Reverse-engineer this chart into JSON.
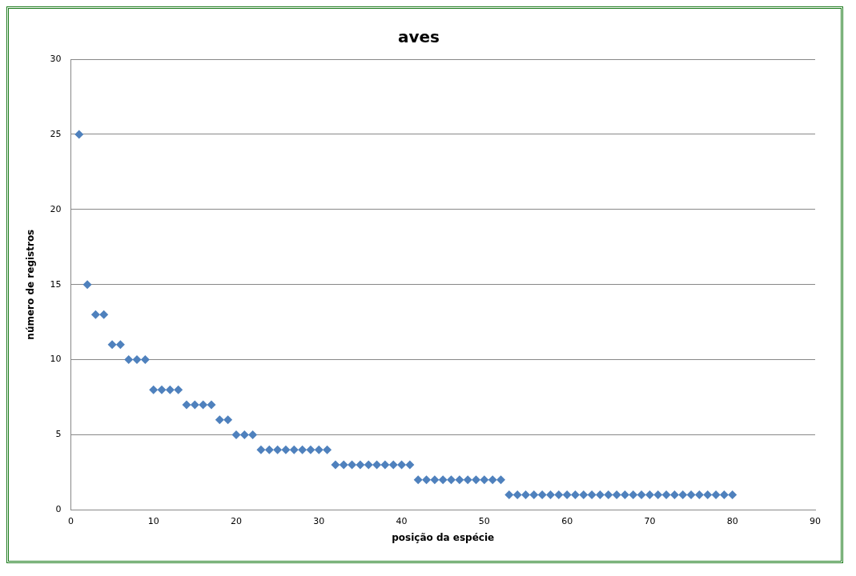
{
  "chart_data": {
    "type": "scatter",
    "title": "aves",
    "xlabel": "posição da espécie",
    "ylabel": "número de registros",
    "x": [
      1,
      2,
      3,
      4,
      5,
      6,
      7,
      8,
      9,
      10,
      11,
      12,
      13,
      14,
      15,
      16,
      17,
      18,
      19,
      20,
      21,
      22,
      23,
      24,
      25,
      26,
      27,
      28,
      29,
      30,
      31,
      32,
      33,
      34,
      35,
      36,
      37,
      38,
      39,
      40,
      41,
      42,
      43,
      44,
      45,
      46,
      47,
      48,
      49,
      50,
      51,
      52,
      53,
      54,
      55,
      56,
      57,
      58,
      59,
      60,
      61,
      62,
      63,
      64,
      65,
      66,
      67,
      68,
      69,
      70,
      71,
      72,
      73,
      74,
      75,
      76,
      77,
      78,
      79,
      80
    ],
    "series": [
      {
        "color": "#4f81bd",
        "values": [
          25,
          15,
          13,
          13,
          11,
          11,
          10,
          10,
          10,
          8,
          8,
          8,
          8,
          7,
          7,
          7,
          7,
          6,
          6,
          5,
          5,
          5,
          4,
          4,
          4,
          4,
          4,
          4,
          4,
          4,
          4,
          3,
          3,
          3,
          3,
          3,
          3,
          3,
          3,
          3,
          3,
          2,
          2,
          2,
          2,
          2,
          2,
          2,
          2,
          2,
          2,
          2,
          1,
          1,
          1,
          1,
          1,
          1,
          1,
          1,
          1,
          1,
          1,
          1,
          1,
          1,
          1,
          1,
          1,
          1,
          1,
          1,
          1,
          1,
          1,
          1,
          1,
          1,
          1,
          1
        ]
      }
    ],
    "xlim": [
      0,
      90
    ],
    "xticks": [
      0,
      10,
      20,
      30,
      40,
      50,
      60,
      70,
      80,
      90
    ],
    "ylim": [
      0,
      30
    ],
    "yticks": [
      0,
      5,
      10,
      15,
      20,
      25,
      30
    ],
    "grid": "y",
    "marker": "diamond",
    "legend": false
  }
}
